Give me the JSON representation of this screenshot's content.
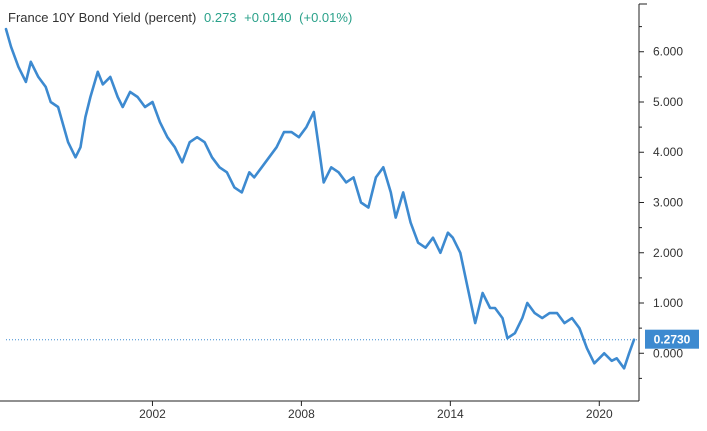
{
  "legend": {
    "series_name": "France 10Y Bond Yield (percent)",
    "last_value": "0.273",
    "change": "+0.0140",
    "change_pct": "(+0.01%)"
  },
  "colors": {
    "line": "#3d8ad0",
    "change_text": "#2aa18a",
    "axis": "#222222",
    "marker_bg": "#3d8ad0",
    "dotted": "#3d8ad0"
  },
  "chart_data": {
    "type": "line",
    "title": "",
    "xlabel": "",
    "ylabel": "",
    "x_tick_labels": [
      "2002",
      "2008",
      "2014",
      "2020"
    ],
    "x_tick_years": [
      2002,
      2008,
      2014,
      2020
    ],
    "y_tick_labels": [
      "0.000",
      "1.000",
      "2.000",
      "3.000",
      "4.000",
      "5.000",
      "6.000"
    ],
    "y_ticks": [
      0,
      1,
      2,
      3,
      4,
      5,
      6
    ],
    "xlim": [
      1996.1,
      2021.6
    ],
    "ylim": [
      -0.95,
      6.95
    ],
    "last_value_label": "0.2730",
    "series": [
      {
        "name": "France 10Y Bond Yield (percent)",
        "x": [
          1996.1,
          1996.3,
          1996.6,
          1996.9,
          1997.1,
          1997.4,
          1997.7,
          1997.9,
          1998.2,
          1998.6,
          1998.9,
          1999.1,
          1999.3,
          1999.5,
          1999.8,
          2000.0,
          2000.3,
          2000.6,
          2000.8,
          2001.1,
          2001.4,
          2001.7,
          2002.0,
          2002.3,
          2002.6,
          2002.9,
          2003.2,
          2003.5,
          2003.8,
          2004.1,
          2004.4,
          2004.7,
          2005.0,
          2005.3,
          2005.6,
          2005.9,
          2006.1,
          2006.4,
          2006.7,
          2007.0,
          2007.3,
          2007.6,
          2007.9,
          2008.2,
          2008.5,
          2008.7,
          2008.9,
          2009.2,
          2009.5,
          2009.8,
          2010.1,
          2010.4,
          2010.7,
          2011.0,
          2011.3,
          2011.6,
          2011.8,
          2012.1,
          2012.4,
          2012.7,
          2013.0,
          2013.3,
          2013.6,
          2013.9,
          2014.1,
          2014.4,
          2014.7,
          2015.0,
          2015.3,
          2015.6,
          2015.8,
          2016.1,
          2016.3,
          2016.6,
          2016.9,
          2017.1,
          2017.4,
          2017.7,
          2018.0,
          2018.3,
          2018.6,
          2018.9,
          2019.2,
          2019.5,
          2019.8,
          2020.0,
          2020.2,
          2020.5,
          2020.7,
          2021.0,
          2021.2,
          2021.4
        ],
        "y": [
          6.45,
          6.1,
          5.7,
          5.4,
          5.8,
          5.5,
          5.3,
          5.0,
          4.9,
          4.2,
          3.9,
          4.1,
          4.7,
          5.1,
          5.6,
          5.35,
          5.5,
          5.1,
          4.9,
          5.2,
          5.1,
          4.9,
          5.0,
          4.6,
          4.3,
          4.1,
          3.8,
          4.2,
          4.3,
          4.2,
          3.9,
          3.7,
          3.6,
          3.3,
          3.2,
          3.6,
          3.5,
          3.7,
          3.9,
          4.1,
          4.4,
          4.4,
          4.3,
          4.5,
          4.8,
          4.1,
          3.4,
          3.7,
          3.6,
          3.4,
          3.5,
          3.0,
          2.9,
          3.5,
          3.7,
          3.2,
          2.7,
          3.2,
          2.6,
          2.2,
          2.1,
          2.3,
          2.0,
          2.4,
          2.3,
          2.0,
          1.3,
          0.6,
          1.2,
          0.9,
          0.9,
          0.7,
          0.3,
          0.4,
          0.7,
          1.0,
          0.8,
          0.7,
          0.8,
          0.8,
          0.6,
          0.7,
          0.5,
          0.1,
          -0.2,
          -0.1,
          0.0,
          -0.15,
          -0.1,
          -0.3,
          0.0,
          0.27
        ]
      }
    ]
  }
}
